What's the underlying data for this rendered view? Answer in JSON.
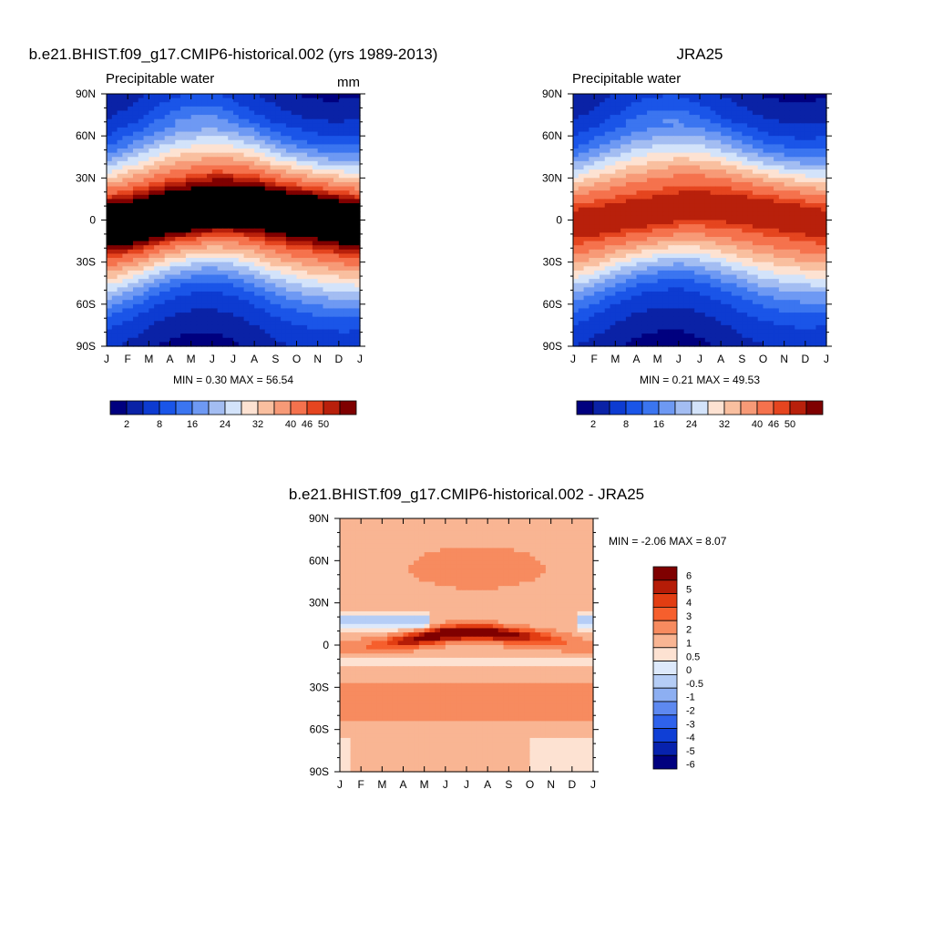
{
  "chart_data": [
    {
      "type": "heatmap",
      "title": "b.e21.BHIST.f09_g17.CMIP6-historical.002 (yrs 1989-2013)",
      "subtitle_left": "Precipitable water",
      "subtitle_right": "mm",
      "stats": "MIN =   0.30 MAX =  56.54",
      "min": 0.3,
      "max": 56.54,
      "x_ticks": [
        "J",
        "F",
        "M",
        "A",
        "M",
        "J",
        "J",
        "A",
        "S",
        "O",
        "N",
        "D",
        "J"
      ],
      "y_ticks": [
        "90N",
        "60N",
        "30N",
        "0",
        "30S",
        "60S",
        "90S"
      ],
      "ylim": [
        -90,
        90
      ],
      "itcz_lat": [
        -3,
        -2,
        0,
        3,
        5,
        8,
        9,
        9,
        7,
        6,
        4,
        1,
        -3
      ],
      "colorbar_labels": [
        "2",
        "8",
        "16",
        "24",
        "32",
        "40",
        "46",
        "50"
      ],
      "levels": [
        2,
        4,
        8,
        12,
        16,
        20,
        24,
        28,
        32,
        36,
        40,
        44,
        46,
        48,
        50
      ]
    },
    {
      "type": "heatmap",
      "title": "JRA25",
      "subtitle_left": "Precipitable water",
      "subtitle_right": "",
      "stats": "MIN =   0.21 MAX =  49.53",
      "min": 0.21,
      "max": 49.53,
      "x_ticks": [
        "J",
        "F",
        "M",
        "A",
        "M",
        "J",
        "J",
        "A",
        "S",
        "O",
        "N",
        "D",
        "J"
      ],
      "y_ticks": [
        "90N",
        "60N",
        "30N",
        "0",
        "30S",
        "60S",
        "90S"
      ],
      "ylim": [
        -90,
        90
      ],
      "itcz_lat": [
        -2,
        -1,
        1,
        3,
        5,
        8,
        9,
        9,
        8,
        6,
        4,
        1,
        -2
      ],
      "colorbar_labels": [
        "2",
        "8",
        "16",
        "24",
        "32",
        "40",
        "46",
        "50"
      ],
      "levels": [
        2,
        4,
        8,
        12,
        16,
        20,
        24,
        28,
        32,
        36,
        40,
        44,
        46,
        48,
        50
      ]
    },
    {
      "type": "heatmap",
      "title": "b.e21.BHIST.f09_g17.CMIP6-historical.002 - JRA25",
      "stats": "MIN =  -2.06 MAX =   8.07",
      "min": -2.06,
      "max": 8.07,
      "x_ticks": [
        "J",
        "F",
        "M",
        "A",
        "M",
        "J",
        "J",
        "A",
        "S",
        "O",
        "N",
        "D",
        "J"
      ],
      "y_ticks": [
        "90N",
        "60N",
        "30N",
        "0",
        "30S",
        "60S",
        "90S"
      ],
      "ylim": [
        -90,
        90
      ],
      "colorbar_labels": [
        "6",
        "5",
        "4",
        "3",
        "2",
        "1",
        "0.5",
        "0",
        "-0.5",
        "-1",
        "-2",
        "-3",
        "-4",
        "-5",
        "-6"
      ]
    }
  ],
  "colors": {
    "abs_scale": [
      "#00007f",
      "#0a22a6",
      "#0d3bd1",
      "#1a55e8",
      "#3b75f0",
      "#6e99f3",
      "#a3bdf2",
      "#d3e3fa",
      "#fde2d2",
      "#f9bf9f",
      "#f79a77",
      "#f5724d",
      "#e5451f",
      "#b8200b",
      "#7f0000"
    ],
    "diff_scale": [
      "#7f0000",
      "#b51c07",
      "#e23d12",
      "#f65f2d",
      "#f78b5f",
      "#f9b593",
      "#fde2d2",
      "#dde9fb",
      "#b5cdf6",
      "#8daff2",
      "#5e89f0",
      "#2f62eb",
      "#0f3fd6",
      "#0722ad",
      "#00007f"
    ]
  }
}
